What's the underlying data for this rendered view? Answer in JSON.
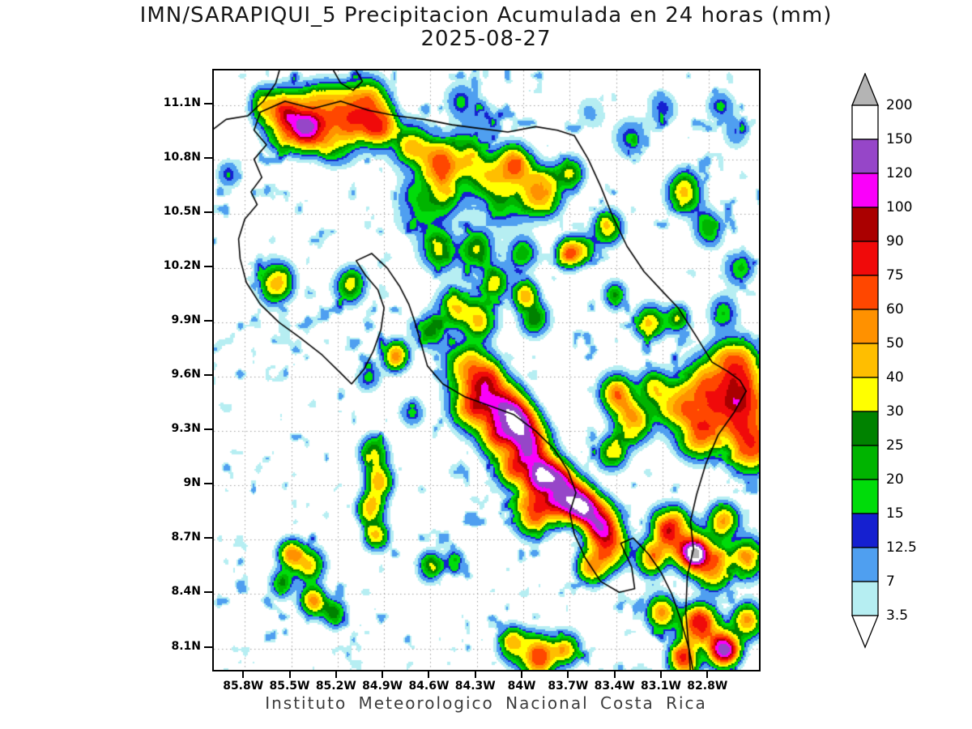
{
  "chart_data": {
    "type": "heatmap",
    "title": "IMN/SARAPIQUI_5 Precipitacion Acumulada en 24 horas (mm)",
    "subtitle": "2025-08-27",
    "caption": "Instituto Meteorologico Nacional Costa Rica",
    "units": "mm",
    "grid": "dotted",
    "legend_position": "right",
    "x_ticks": [
      {
        "label": "85.8W",
        "value": -85.8
      },
      {
        "label": "85.5W",
        "value": -85.5
      },
      {
        "label": "85.2W",
        "value": -85.2
      },
      {
        "label": "84.9W",
        "value": -84.9
      },
      {
        "label": "84.6W",
        "value": -84.6
      },
      {
        "label": "84.3W",
        "value": -84.3
      },
      {
        "label": "84W",
        "value": -84
      },
      {
        "label": "83.7W",
        "value": -83.7
      },
      {
        "label": "83.4W",
        "value": -83.4
      },
      {
        "label": "83.1W",
        "value": -83.1
      },
      {
        "label": "82.8W",
        "value": -82.8
      }
    ],
    "y_ticks": [
      {
        "label": "11.1N",
        "value": 11.1
      },
      {
        "label": "10.8N",
        "value": 10.8
      },
      {
        "label": "10.5N",
        "value": 10.5
      },
      {
        "label": "10.2N",
        "value": 10.2
      },
      {
        "label": "9.9N",
        "value": 9.9
      },
      {
        "label": "9.6N",
        "value": 9.6
      },
      {
        "label": "9.3N",
        "value": 9.3
      },
      {
        "label": "9N",
        "value": 9
      },
      {
        "label": "8.7N",
        "value": 8.7
      },
      {
        "label": "8.4N",
        "value": 8.4
      },
      {
        "label": "8.1N",
        "value": 8.1
      }
    ],
    "x_range": [
      -86.0,
      -82.477
    ],
    "y_range": [
      11.29,
      7.982
    ],
    "colorbar": {
      "labels_top_down": [
        "200",
        "150",
        "120",
        "100",
        "90",
        "75",
        "60",
        "50",
        "40",
        "30",
        "25",
        "20",
        "15",
        "12.5",
        "7",
        "3.5"
      ],
      "levels_ascending": [
        3.5,
        7,
        12.5,
        15,
        20,
        25,
        30,
        40,
        50,
        60,
        75,
        90,
        100,
        120,
        150,
        200
      ],
      "band_colors_top_down": [
        "#ffffff",
        "#9646c8",
        "#fa00fa",
        "#aa0000",
        "#f00a0a",
        "#ff4700",
        "#ff9100",
        "#ffbe00",
        "#ffff00",
        "#008200",
        "#00b400",
        "#00dc0a",
        "#1520d0",
        "#4f9ff0",
        "#b6eef2"
      ],
      "above_color": "#b4b4b4",
      "below_color": "#ffffff"
    },
    "field": {
      "cells_lon_lat_peak_sigma": [
        [
          -85.52,
          11.02,
          85,
          0.09
        ],
        [
          -85.38,
          10.97,
          75,
          0.07
        ],
        [
          -85.3,
          11.08,
          55,
          0.08
        ],
        [
          -85.12,
          11.02,
          80,
          0.09
        ],
        [
          -85.0,
          11.11,
          50,
          0.08
        ],
        [
          -84.93,
          10.97,
          62,
          0.07
        ],
        [
          -85.66,
          11.1,
          35,
          0.06
        ],
        [
          -85.22,
          10.88,
          28,
          0.07
        ],
        [
          -84.72,
          10.88,
          38,
          0.08
        ],
        [
          -84.55,
          10.78,
          55,
          0.08
        ],
        [
          -84.38,
          10.82,
          32,
          0.08
        ],
        [
          -84.22,
          10.7,
          30,
          0.08
        ],
        [
          -84.05,
          10.76,
          62,
          0.07
        ],
        [
          -83.88,
          10.62,
          52,
          0.08
        ],
        [
          -84.48,
          10.62,
          26,
          0.09
        ],
        [
          -84.68,
          10.55,
          18,
          0.1
        ],
        [
          -84.1,
          10.55,
          24,
          0.08
        ],
        [
          -83.7,
          10.72,
          30,
          0.06
        ],
        [
          -84.4,
          11.12,
          14,
          0.07
        ],
        [
          -84.22,
          11.02,
          12,
          0.06
        ],
        [
          -83.3,
          10.92,
          14,
          0.07
        ],
        [
          -83.1,
          11.08,
          16,
          0.06
        ],
        [
          -82.72,
          11.1,
          14,
          0.06
        ],
        [
          -82.62,
          10.95,
          10,
          0.06
        ],
        [
          -85.9,
          10.72,
          16,
          0.05
        ],
        [
          -83.55,
          11.06,
          10,
          0.06
        ],
        [
          -82.95,
          10.62,
          38,
          0.07
        ],
        [
          -82.8,
          10.42,
          30,
          0.06
        ],
        [
          -83.45,
          10.42,
          34,
          0.06
        ],
        [
          -83.6,
          10.3,
          24,
          0.05
        ],
        [
          -82.6,
          10.2,
          22,
          0.06
        ],
        [
          -85.6,
          10.12,
          42,
          0.07
        ],
        [
          -85.12,
          10.1,
          40,
          0.06
        ],
        [
          -84.55,
          10.3,
          34,
          0.07
        ],
        [
          -84.3,
          10.3,
          38,
          0.07
        ],
        [
          -84.0,
          10.28,
          26,
          0.06
        ],
        [
          -83.7,
          10.28,
          60,
          0.05
        ],
        [
          -84.18,
          10.12,
          30,
          0.06
        ],
        [
          -84.45,
          9.98,
          36,
          0.07
        ],
        [
          -84.28,
          9.92,
          40,
          0.07
        ],
        [
          -84.6,
          9.85,
          28,
          0.06
        ],
        [
          -83.98,
          10.05,
          55,
          0.05
        ],
        [
          -83.92,
          9.92,
          30,
          0.06
        ],
        [
          -83.4,
          10.05,
          24,
          0.05
        ],
        [
          -83.18,
          9.9,
          40,
          0.06
        ],
        [
          -83.0,
          9.92,
          26,
          0.05
        ],
        [
          -82.7,
          9.95,
          20,
          0.06
        ],
        [
          -84.82,
          9.72,
          58,
          0.05
        ],
        [
          -85.0,
          9.6,
          20,
          0.05
        ],
        [
          -84.38,
          9.66,
          48,
          0.08
        ],
        [
          -84.24,
          9.56,
          72,
          0.08
        ],
        [
          -84.12,
          9.44,
          88,
          0.08
        ],
        [
          -84.03,
          9.34,
          120,
          0.07
        ],
        [
          -83.96,
          9.22,
          95,
          0.08
        ],
        [
          -83.88,
          9.06,
          125,
          0.06
        ],
        [
          -83.8,
          9.0,
          92,
          0.08
        ],
        [
          -83.7,
          8.94,
          105,
          0.07
        ],
        [
          -83.6,
          8.88,
          118,
          0.06
        ],
        [
          -83.5,
          8.8,
          95,
          0.07
        ],
        [
          -83.44,
          8.66,
          70,
          0.07
        ],
        [
          -83.55,
          8.55,
          48,
          0.06
        ],
        [
          -84.32,
          9.44,
          52,
          0.09
        ],
        [
          -84.05,
          9.1,
          58,
          0.08
        ],
        [
          -83.92,
          8.86,
          60,
          0.08
        ],
        [
          -84.16,
          9.26,
          60,
          0.07
        ],
        [
          -83.38,
          9.5,
          58,
          0.07
        ],
        [
          -83.28,
          9.34,
          48,
          0.07
        ],
        [
          -83.15,
          9.55,
          32,
          0.06
        ],
        [
          -83.42,
          9.18,
          36,
          0.06
        ],
        [
          -82.78,
          9.52,
          78,
          0.11
        ],
        [
          -82.58,
          9.45,
          88,
          0.1
        ],
        [
          -82.85,
          9.3,
          62,
          0.09
        ],
        [
          -82.62,
          9.66,
          58,
          0.09
        ],
        [
          -82.52,
          9.22,
          72,
          0.09
        ],
        [
          -83.02,
          9.44,
          34,
          0.09
        ],
        [
          -83.05,
          8.76,
          82,
          0.07
        ],
        [
          -82.9,
          8.64,
          98,
          0.07
        ],
        [
          -82.88,
          8.62,
          120,
          0.035
        ],
        [
          -83.16,
          8.6,
          55,
          0.06
        ],
        [
          -82.76,
          8.54,
          66,
          0.07
        ],
        [
          -82.7,
          8.8,
          52,
          0.06
        ],
        [
          -82.55,
          8.6,
          45,
          0.07
        ],
        [
          -82.86,
          8.22,
          92,
          0.07
        ],
        [
          -82.7,
          8.1,
          130,
          0.06
        ],
        [
          -82.96,
          8.04,
          72,
          0.06
        ],
        [
          -83.1,
          8.3,
          48,
          0.06
        ],
        [
          -82.55,
          8.25,
          55,
          0.06
        ],
        [
          -83.9,
          8.06,
          72,
          0.07
        ],
        [
          -84.06,
          8.12,
          46,
          0.06
        ],
        [
          -83.72,
          8.1,
          40,
          0.06
        ],
        [
          -85.5,
          8.62,
          52,
          0.05
        ],
        [
          -85.38,
          8.56,
          36,
          0.06
        ],
        [
          -85.56,
          8.46,
          30,
          0.05
        ],
        [
          -85.36,
          8.36,
          58,
          0.05
        ],
        [
          -85.22,
          8.3,
          34,
          0.05
        ],
        [
          -84.96,
          9.18,
          42,
          0.055
        ],
        [
          -84.93,
          9.03,
          46,
          0.055
        ],
        [
          -84.98,
          8.88,
          50,
          0.055
        ],
        [
          -84.95,
          8.72,
          36,
          0.05
        ],
        [
          -84.6,
          8.55,
          34,
          0.05
        ],
        [
          -84.44,
          8.59,
          20,
          0.04
        ],
        [
          -84.72,
          9.4,
          18,
          0.05
        ]
      ],
      "speckle": {
        "threshold": 0.63,
        "gain": 38,
        "freq": 11,
        "distort_freq": 9
      }
    },
    "coastlines": [
      [
        [
          -86.06,
          10.93
        ],
        [
          -85.92,
          11.02
        ],
        [
          -85.78,
          11.04
        ],
        [
          -85.68,
          11.12
        ],
        [
          -85.6,
          11.22
        ],
        [
          -85.57,
          11.31
        ]
      ],
      [
        [
          -85.24,
          11.31
        ],
        [
          -85.18,
          11.22
        ],
        [
          -85.1,
          11.18
        ],
        [
          -85.04,
          11.23
        ],
        [
          -85.08,
          11.29
        ],
        [
          -85.16,
          11.31
        ],
        [
          -85.24,
          11.31
        ]
      ],
      [
        [
          -85.7,
          11.06
        ],
        [
          -85.54,
          11.12
        ],
        [
          -85.36,
          11.08
        ],
        [
          -85.18,
          11.12
        ],
        [
          -85.0,
          11.07
        ],
        [
          -84.82,
          11.04
        ],
        [
          -84.64,
          11.02
        ],
        [
          -84.46,
          10.99
        ],
        [
          -84.28,
          10.97
        ],
        [
          -84.1,
          10.95
        ],
        [
          -83.92,
          10.98
        ],
        [
          -83.78,
          10.96
        ],
        [
          -83.67,
          10.93
        ]
      ],
      [
        [
          -83.67,
          10.93
        ],
        [
          -83.58,
          10.8
        ],
        [
          -83.5,
          10.65
        ],
        [
          -83.42,
          10.48
        ],
        [
          -83.33,
          10.32
        ],
        [
          -83.22,
          10.18
        ],
        [
          -83.1,
          10.07
        ],
        [
          -83.0,
          9.98
        ],
        [
          -82.88,
          9.82
        ],
        [
          -82.78,
          9.68
        ],
        [
          -82.68,
          9.63
        ],
        [
          -82.6,
          9.58
        ],
        [
          -82.56,
          9.52
        ]
      ],
      [
        [
          -82.56,
          9.52
        ],
        [
          -82.64,
          9.4
        ],
        [
          -82.74,
          9.28
        ],
        [
          -82.82,
          9.12
        ],
        [
          -82.88,
          8.95
        ],
        [
          -82.92,
          8.8
        ],
        [
          -82.9,
          8.65
        ],
        [
          -82.94,
          8.5
        ],
        [
          -82.95,
          8.3
        ],
        [
          -82.93,
          8.1
        ],
        [
          -82.92,
          7.97
        ]
      ],
      [
        [
          -85.7,
          11.06
        ],
        [
          -85.74,
          10.96
        ],
        [
          -85.66,
          10.88
        ],
        [
          -85.74,
          10.8
        ],
        [
          -85.69,
          10.7
        ],
        [
          -85.76,
          10.62
        ],
        [
          -85.72,
          10.55
        ],
        [
          -85.8,
          10.47
        ],
        [
          -85.84,
          10.36
        ],
        [
          -85.83,
          10.25
        ],
        [
          -85.79,
          10.12
        ],
        [
          -85.7,
          10.0
        ],
        [
          -85.58,
          9.9
        ],
        [
          -85.45,
          9.82
        ],
        [
          -85.3,
          9.72
        ],
        [
          -85.18,
          9.62
        ],
        [
          -85.11,
          9.56
        ],
        [
          -85.03,
          9.64
        ],
        [
          -84.97,
          9.74
        ],
        [
          -84.92,
          9.86
        ],
        [
          -84.9,
          9.98
        ],
        [
          -84.94,
          10.08
        ],
        [
          -85.02,
          10.16
        ],
        [
          -85.08,
          10.24
        ],
        [
          -84.98,
          10.28
        ],
        [
          -84.88,
          10.2
        ],
        [
          -84.8,
          10.1
        ],
        [
          -84.74,
          10.0
        ],
        [
          -84.7,
          9.9
        ],
        [
          -84.66,
          9.78
        ],
        [
          -84.62,
          9.66
        ],
        [
          -84.52,
          9.56
        ],
        [
          -84.38,
          9.49
        ],
        [
          -84.22,
          9.44
        ],
        [
          -84.06,
          9.39
        ],
        [
          -83.92,
          9.3
        ],
        [
          -83.8,
          9.2
        ],
        [
          -83.71,
          9.08
        ],
        [
          -83.66,
          8.96
        ],
        [
          -83.7,
          8.85
        ],
        [
          -83.67,
          8.73
        ],
        [
          -83.6,
          8.6
        ],
        [
          -83.5,
          8.47
        ],
        [
          -83.38,
          8.41
        ],
        [
          -83.28,
          8.43
        ],
        [
          -83.3,
          8.55
        ],
        [
          -83.37,
          8.68
        ],
        [
          -83.29,
          8.71
        ],
        [
          -83.19,
          8.62
        ],
        [
          -83.11,
          8.52
        ],
        [
          -83.04,
          8.4
        ],
        [
          -82.98,
          8.25
        ],
        [
          -82.93,
          8.1
        ],
        [
          -82.9,
          7.97
        ]
      ]
    ]
  }
}
